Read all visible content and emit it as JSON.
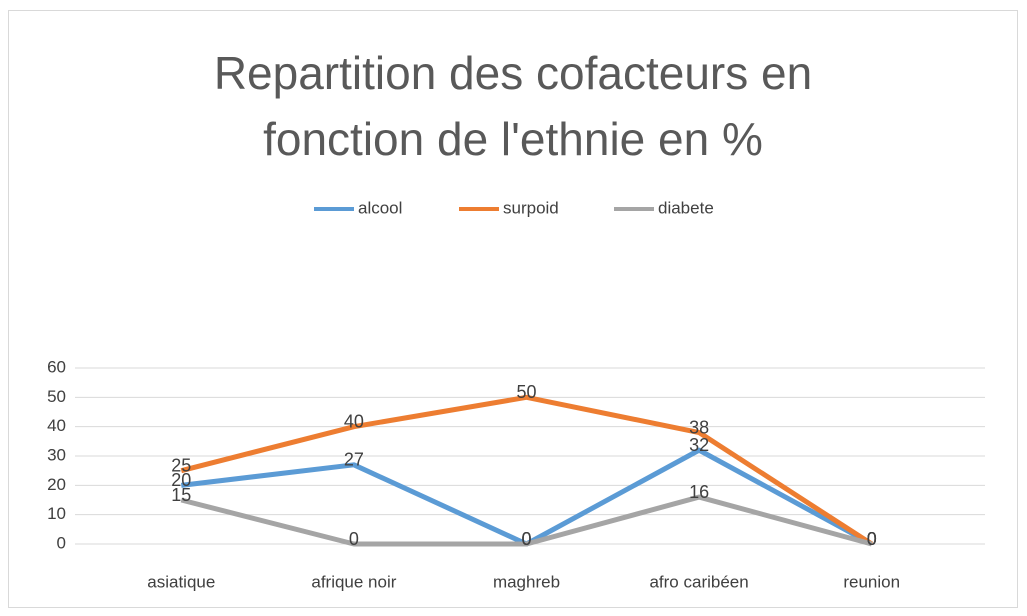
{
  "chart_data": {
    "type": "line",
    "title": "Repartition des cofacteurs en fonction de l'ethnie en %",
    "categories": [
      "asiatique",
      "afrique noir",
      "maghreb",
      "afro caribéen",
      "reunion"
    ],
    "series": [
      {
        "name": "alcool",
        "color": "#5b9bd5",
        "values": [
          20,
          27,
          0,
          32,
          0
        ]
      },
      {
        "name": "surpoid",
        "color": "#ed7d31",
        "values": [
          25,
          40,
          50,
          38,
          0
        ]
      },
      {
        "name": "diabete",
        "color": "#a5a5a5",
        "values": [
          15,
          0,
          0,
          16,
          0
        ]
      }
    ],
    "ylim": [
      0,
      60
    ],
    "yticks": [
      0,
      10,
      20,
      30,
      40,
      50,
      60
    ],
    "grid": true,
    "legend": "top",
    "data_labels": true
  }
}
